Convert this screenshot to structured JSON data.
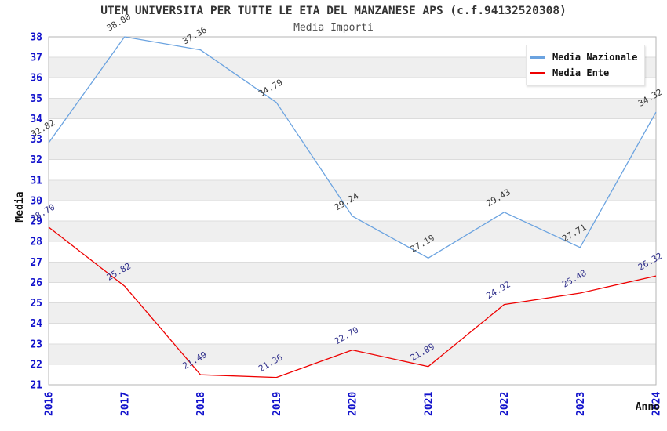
{
  "chart_data": {
    "type": "line",
    "title": "UTEM UNIVERSITA PER TUTTE LE ETA DEL MANZANESE APS (c.f.94132520308)",
    "subtitle": "Media Importi",
    "xlabel": "Anno",
    "ylabel": "Media",
    "x": [
      "2016",
      "2017",
      "2018",
      "2019",
      "2020",
      "2021",
      "2022",
      "2023",
      "2024"
    ],
    "series": [
      {
        "name": "Media Nazionale",
        "color": "#6ba3e0",
        "label_color": "#3a3a3a",
        "values": [
          32.82,
          38.0,
          37.36,
          34.79,
          29.24,
          27.19,
          29.43,
          27.71,
          34.32
        ]
      },
      {
        "name": "Media Ente",
        "color": "#ee0000",
        "label_color": "#32328c",
        "values": [
          28.7,
          25.82,
          21.49,
          21.36,
          22.7,
          21.89,
          24.92,
          25.48,
          26.32
        ]
      }
    ],
    "ylim": [
      21,
      38
    ],
    "ytick_step": 1,
    "grid": true,
    "legend_position": "top-right",
    "colors": {
      "axis_tick": "#1212cc",
      "title": "#333333",
      "subtitle": "#4d4d4d",
      "gridline": "#dcdcdc",
      "band_fill": "#efefef",
      "plot_border": "#b6b6b6"
    }
  }
}
